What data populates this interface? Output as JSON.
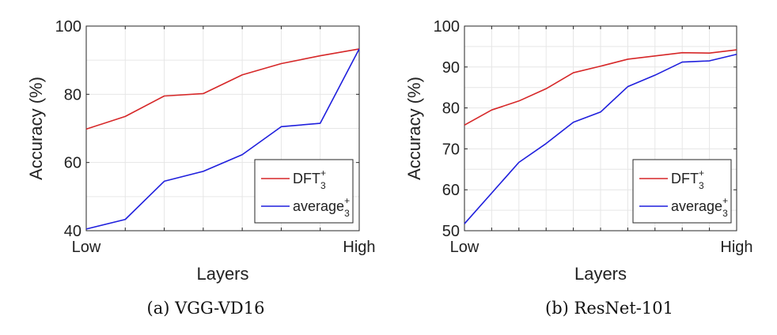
{
  "chart_data": [
    {
      "type": "line",
      "caption": "(a) VGG-VD16",
      "xlabel": "Layers",
      "ylabel": "Accuracy (%)",
      "x_tick_labels": [
        "Low",
        "High"
      ],
      "ylim": [
        40,
        100
      ],
      "yticks": [
        40,
        60,
        80,
        100
      ],
      "grid": true,
      "legend_placement": "bottom-right",
      "x": [
        1,
        2,
        3,
        4,
        5,
        6,
        7,
        8
      ],
      "series": [
        {
          "name": "DFT",
          "name_sub": "3",
          "name_sup": "+",
          "color": "#d62728",
          "values": [
            69.8,
            73.5,
            79.5,
            80.2,
            85.7,
            89.0,
            91.3,
            93.3
          ]
        },
        {
          "name": "average",
          "name_sub": "3",
          "name_sup": "+",
          "color": "#1f1fdd",
          "values": [
            40.5,
            43.3,
            54.5,
            57.4,
            62.3,
            70.5,
            71.5,
            93.3
          ]
        }
      ]
    },
    {
      "type": "line",
      "caption": "(b) ResNet-101",
      "xlabel": "Layers",
      "ylabel": "Accuracy (%)",
      "x_tick_labels": [
        "Low",
        "High"
      ],
      "ylim": [
        50,
        100
      ],
      "yticks": [
        50,
        60,
        70,
        80,
        90,
        100
      ],
      "grid": true,
      "legend_placement": "bottom-right",
      "x": [
        1,
        2,
        3,
        4,
        5,
        6,
        7,
        8,
        9,
        10,
        11
      ],
      "series": [
        {
          "name": "DFT",
          "name_sub": "3",
          "name_sup": "+",
          "color": "#d62728",
          "values": [
            75.8,
            79.5,
            81.7,
            84.7,
            88.6,
            90.2,
            91.9,
            92.7,
            93.5,
            93.4,
            94.2
          ]
        },
        {
          "name": "average",
          "name_sub": "3",
          "name_sup": "+",
          "color": "#1f1fdd",
          "values": [
            51.7,
            59.2,
            66.7,
            71.3,
            76.5,
            79.0,
            85.2,
            88.0,
            91.2,
            91.5,
            93.1
          ]
        }
      ]
    }
  ]
}
